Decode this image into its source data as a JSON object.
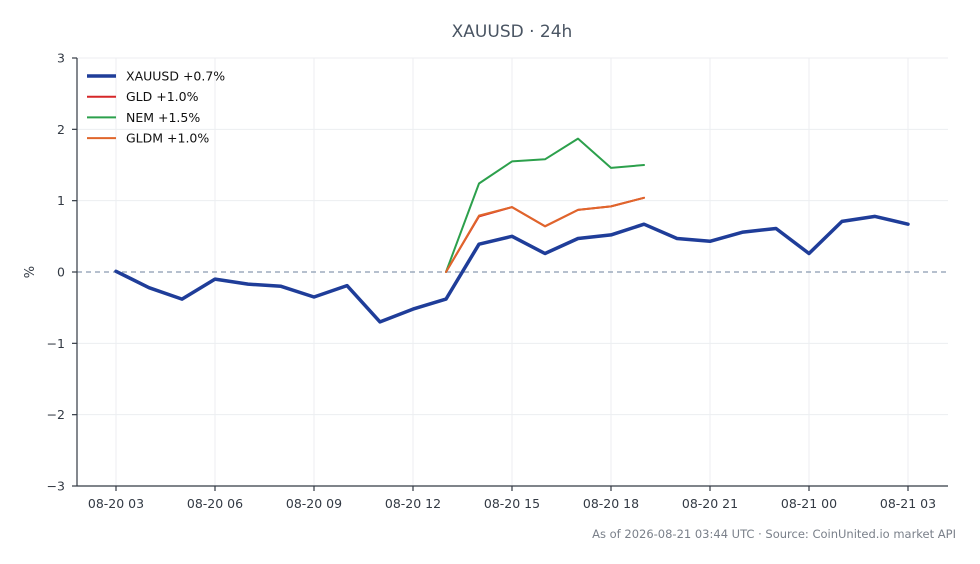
{
  "chart_data": {
    "type": "line",
    "title": "XAUUSD · 24h",
    "xlabel": "",
    "ylabel": "%",
    "ylim": [
      -3,
      3
    ],
    "yticks": [
      3,
      2,
      1,
      0,
      -1,
      -2,
      -3
    ],
    "ytick_labels": [
      "3",
      "2",
      "1",
      "0",
      "−1",
      "−2",
      "−3"
    ],
    "xlim": [
      2,
      25
    ],
    "xticks": [
      3,
      6,
      9,
      12,
      15,
      18,
      21,
      24,
      27
    ],
    "xtick_labels": [
      "08-20 03",
      "08-20 06",
      "08-20 09",
      "08-20 12",
      "08-20 15",
      "08-20 18",
      "08-20 21",
      "08-21 00",
      "08-21 03"
    ],
    "grid": true,
    "zero_line": true,
    "legend_position": "top-left",
    "series": [
      {
        "name": "XAUUSD +0.7%",
        "color": "#1f3d99",
        "width": 3.5,
        "x": [
          "08-20 03",
          "08-20 04",
          "08-20 05",
          "08-20 06",
          "08-20 07",
          "08-20 08",
          "08-20 09",
          "08-20 10",
          "08-20 11",
          "08-20 12",
          "08-20 13",
          "08-20 14",
          "08-20 15",
          "08-20 16",
          "08-20 17",
          "08-20 18",
          "08-20 19",
          "08-20 20",
          "08-20 21",
          "08-20 22",
          "08-20 23",
          "08-21 00",
          "08-21 01",
          "08-21 02",
          "08-21 03"
        ],
        "values": [
          0.01,
          -0.22,
          -0.38,
          -0.1,
          -0.17,
          -0.2,
          -0.35,
          -0.19,
          -0.7,
          -0.52,
          -0.38,
          0.39,
          0.5,
          0.26,
          0.47,
          0.52,
          0.67,
          0.47,
          0.43,
          0.56,
          0.61,
          0.26,
          0.71,
          0.78,
          0.67
        ]
      },
      {
        "name": "GLD +1.0%",
        "color": "#d62728",
        "width": 2,
        "x": [
          "08-20 13",
          "08-20 14",
          "08-20 15",
          "08-20 16",
          "08-20 17",
          "08-20 18",
          "08-20 19"
        ],
        "values": [
          0.0,
          0.78,
          0.91,
          0.64,
          0.87,
          0.92,
          1.04
        ]
      },
      {
        "name": "NEM +1.5%",
        "color": "#2ca04c",
        "width": 2,
        "x": [
          "08-20 13",
          "08-20 14",
          "08-20 15",
          "08-20 16",
          "08-20 17",
          "08-20 18",
          "08-20 19"
        ],
        "values": [
          0.0,
          1.24,
          1.55,
          1.58,
          1.87,
          1.46,
          1.5
        ]
      },
      {
        "name": "GLDM +1.0%",
        "color": "#e0662b",
        "width": 2,
        "x": [
          "08-20 13",
          "08-20 14",
          "08-20 15",
          "08-20 16",
          "08-20 17",
          "08-20 18",
          "08-20 19"
        ],
        "values": [
          0.0,
          0.79,
          0.91,
          0.64,
          0.87,
          0.92,
          1.04
        ]
      }
    ],
    "footer": "As of 2026-08-21 03:44 UTC · Source: CoinUnited.io market API"
  }
}
